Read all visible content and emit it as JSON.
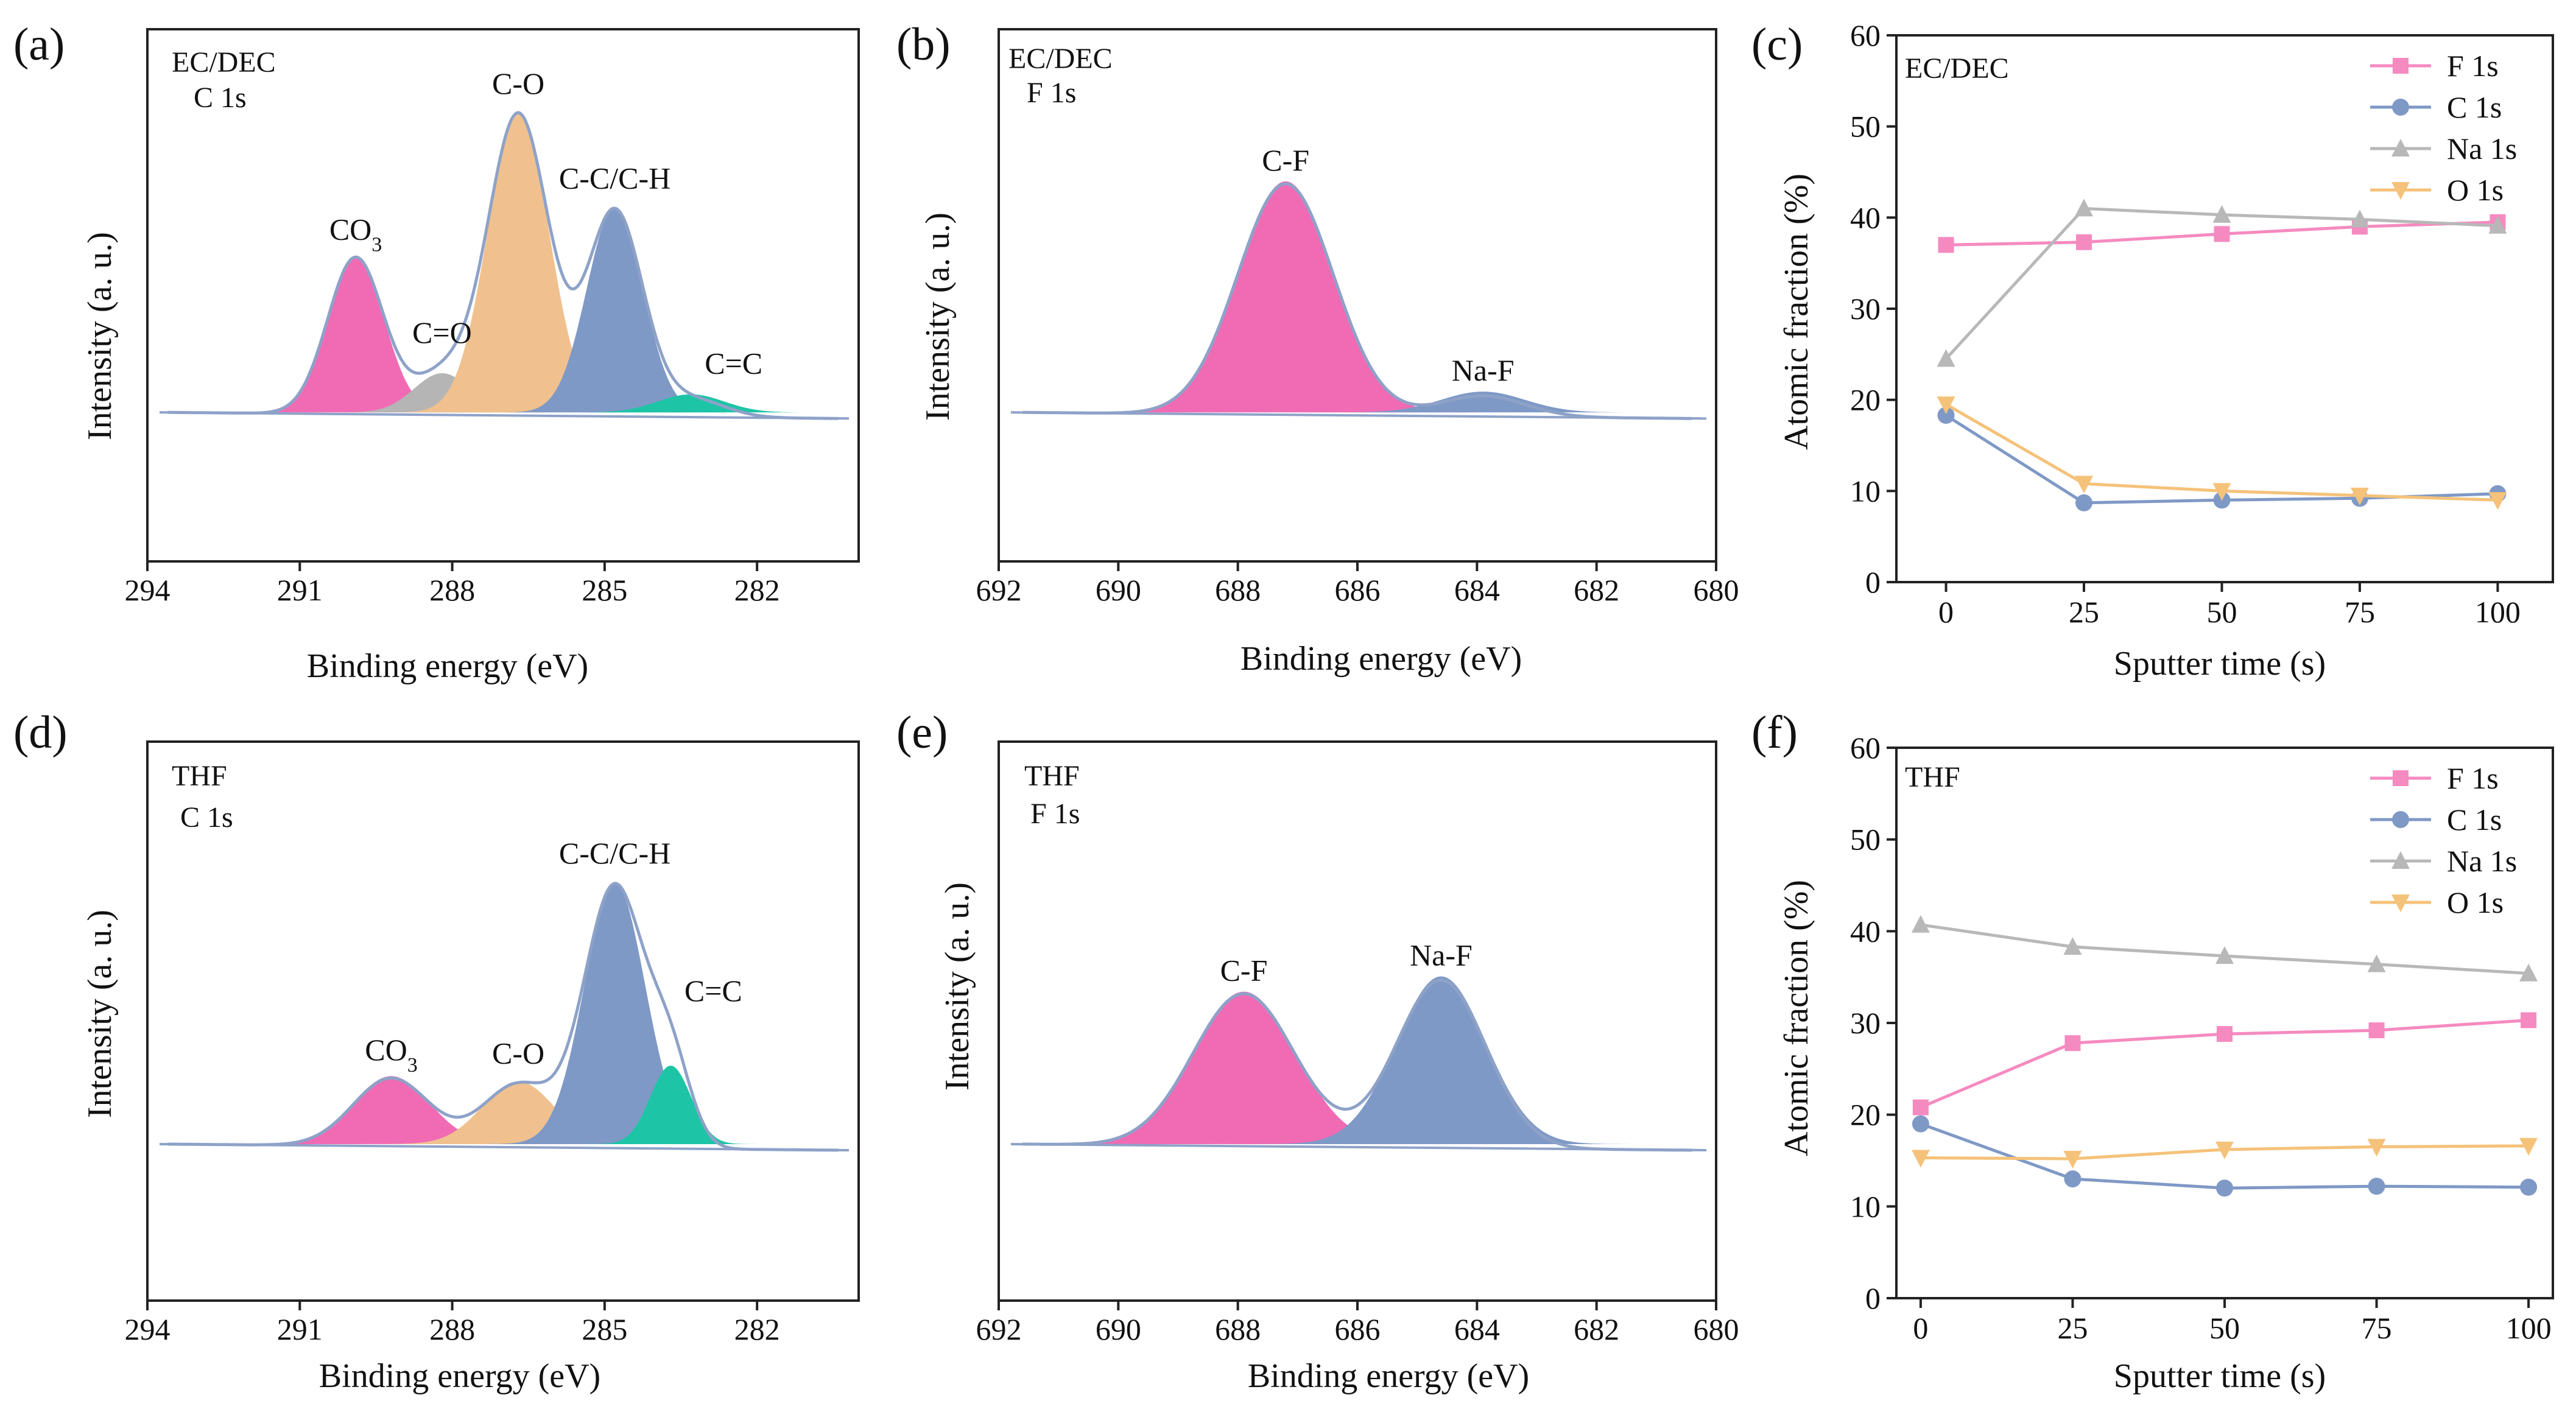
{
  "figure": {
    "panels": {
      "a": {
        "panel_label": "(a)",
        "sample": "EC/DEC",
        "region": "C 1s",
        "xlabel": "Binding energy (eV)",
        "ylabel": "Intensity (a. u.)"
      },
      "b": {
        "panel_label": "(b)",
        "sample": "EC/DEC",
        "region": "F 1s",
        "xlabel": "Binding energy (eV)",
        "ylabel": "Intensity (a. u.)"
      },
      "c": {
        "panel_label": "(c)",
        "sample": "EC/DEC",
        "xlabel": "Sputter time (s)",
        "ylabel": "Atomic fraction (%)"
      },
      "d": {
        "panel_label": "(d)",
        "sample": "THF",
        "region": "C 1s",
        "xlabel": "Binding energy (eV)",
        "ylabel": "Intensity (a. u.)"
      },
      "e": {
        "panel_label": "(e)",
        "sample": "THF",
        "region": "F 1s",
        "xlabel": "Binding energy (eV)",
        "ylabel": "Intensity (a. u.)"
      },
      "f": {
        "panel_label": "(f)",
        "sample": "THF",
        "xlabel": "Sputter time (s)",
        "ylabel": "Atomic fraction (%)"
      }
    }
  },
  "colors": {
    "envelope": "#8ea2c8",
    "CO3": "#f06bb4",
    "C=O": "#b5b5b5",
    "C-O": "#f0c18e",
    "C-C/C-H": "#7f99c6",
    "C=C": "#1ec4a6",
    "C-F": "#f06bb4",
    "Na-F": "#7f99c6",
    "F 1s": "#f58ac0",
    "C 1s": "#7f99c6",
    "Na 1s": "#b8b8b8",
    "O 1s": "#f5c27a"
  },
  "chart_data": [
    {
      "id": "a",
      "type": "xps-peak-fit",
      "title": "EC/DEC C 1s",
      "xlabel": "Binding energy (eV)",
      "ylabel": "Intensity (a. u.)",
      "xlim": [
        294,
        280
      ],
      "xticks": [
        "294",
        "291",
        "288",
        "285",
        "282"
      ],
      "xtick_values": [
        294,
        291,
        288,
        285,
        282
      ],
      "ylim": [
        0,
        1.15
      ],
      "peaks": [
        {
          "name": "CO3",
          "label": "CO",
          "label_sub": "3",
          "center": 289.9,
          "height": 0.52,
          "sigma": 0.55,
          "color_key": "CO3"
        },
        {
          "name": "C=O",
          "label": "C=O",
          "center": 288.2,
          "height": 0.13,
          "sigma": 0.55,
          "color_key": "C=O"
        },
        {
          "name": "C-O",
          "label": "C-O",
          "center": 286.7,
          "height": 1.0,
          "sigma": 0.6,
          "color_key": "C-O"
        },
        {
          "name": "C-C/C-H",
          "label": "C-C/C-H",
          "center": 284.8,
          "height": 0.68,
          "sigma": 0.55,
          "color_key": "C-C/C-H"
        },
        {
          "name": "C=C",
          "label": "C=C",
          "center": 283.3,
          "height": 0.06,
          "sigma": 0.65,
          "color_key": "C=C"
        }
      ]
    },
    {
      "id": "b",
      "type": "xps-peak-fit",
      "title": "EC/DEC F 1s",
      "xlabel": "Binding energy (eV)",
      "ylabel": "Intensity (a. u.)",
      "xlim": [
        692,
        680
      ],
      "xticks": [
        "692",
        "690",
        "688",
        "686",
        "684",
        "682",
        "680"
      ],
      "xtick_values": [
        692,
        690,
        688,
        686,
        684,
        682,
        680
      ],
      "ylim": [
        0,
        1.5
      ],
      "peaks": [
        {
          "name": "C-F",
          "label": "C-F",
          "center": 687.2,
          "height": 1.0,
          "sigma": 0.8,
          "color_key": "C-F"
        },
        {
          "name": "Na-F",
          "label": "Na-F",
          "center": 683.9,
          "height": 0.09,
          "sigma": 0.7,
          "color_key": "Na-F"
        }
      ]
    },
    {
      "id": "c",
      "type": "line",
      "title": "EC/DEC",
      "xlabel": "Sputter time (s)",
      "ylabel": "Atomic fraction (%)",
      "x": [
        0,
        25,
        50,
        75,
        100
      ],
      "xlim": [
        -9,
        110
      ],
      "ylim": [
        0,
        60
      ],
      "xticks": [
        "0",
        "25",
        "50",
        "75",
        "100"
      ],
      "yticks": [
        "0",
        "10",
        "20",
        "30",
        "40",
        "50",
        "60"
      ],
      "legend_position": "top-right",
      "series": [
        {
          "name": "F 1s",
          "marker": "square",
          "color_key": "F 1s",
          "values": [
            37.0,
            37.3,
            38.2,
            39.0,
            39.5
          ]
        },
        {
          "name": "C 1s",
          "marker": "circle",
          "color_key": "C 1s",
          "values": [
            18.3,
            8.7,
            9.0,
            9.2,
            9.7
          ]
        },
        {
          "name": "Na 1s",
          "marker": "triangle-up",
          "color_key": "Na 1s",
          "values": [
            24.5,
            41.0,
            40.3,
            39.8,
            39.1
          ]
        },
        {
          "name": "O 1s",
          "marker": "triangle-down",
          "color_key": "O 1s",
          "values": [
            19.5,
            10.8,
            10.0,
            9.5,
            9.0
          ]
        }
      ]
    },
    {
      "id": "d",
      "type": "xps-peak-fit",
      "title": "THF C 1s",
      "xlabel": "Binding energy (eV)",
      "ylabel": "Intensity (a. u.)",
      "xlim": [
        294,
        280
      ],
      "xticks": [
        "294",
        "291",
        "288",
        "285",
        "282"
      ],
      "xtick_values": [
        294,
        291,
        288,
        285,
        282
      ],
      "ylim": [
        0,
        1.4
      ],
      "peaks": [
        {
          "name": "CO3",
          "label": "CO",
          "label_sub": "3",
          "center": 289.2,
          "height": 0.26,
          "sigma": 0.75,
          "color_key": "CO3"
        },
        {
          "name": "C-O",
          "label": "C-O",
          "center": 286.7,
          "height": 0.24,
          "sigma": 0.7,
          "color_key": "C-O"
        },
        {
          "name": "C-C/C-H",
          "label": "C-C/C-H",
          "center": 284.8,
          "height": 1.0,
          "sigma": 0.6,
          "color_key": "C-C/C-H"
        },
        {
          "name": "C=C",
          "label": "C=C",
          "center": 283.7,
          "height": 0.3,
          "sigma": 0.4,
          "color_key": "C=C"
        }
      ]
    },
    {
      "id": "e",
      "type": "xps-peak-fit",
      "title": "THF F 1s",
      "xlabel": "Binding energy (eV)",
      "ylabel": "Intensity (a. u.)",
      "xlim": [
        692,
        680
      ],
      "xticks": [
        "692",
        "690",
        "688",
        "686",
        "684",
        "682",
        "680"
      ],
      "xtick_values": [
        692,
        690,
        688,
        686,
        684,
        682,
        680
      ],
      "ylim": [
        0,
        2.4
      ],
      "peaks": [
        {
          "name": "C-F",
          "label": "C-F",
          "center": 687.9,
          "height": 1.0,
          "sigma": 0.85,
          "color_key": "C-F"
        },
        {
          "name": "Na-F",
          "label": "Na-F",
          "center": 684.6,
          "height": 1.1,
          "sigma": 0.75,
          "color_key": "Na-F"
        }
      ]
    },
    {
      "id": "f",
      "type": "line",
      "title": "THF",
      "xlabel": "Sputter time (s)",
      "ylabel": "Atomic fraction (%)",
      "x": [
        0,
        25,
        50,
        75,
        100
      ],
      "xlim": [
        -4,
        104
      ],
      "ylim": [
        0,
        60
      ],
      "xticks": [
        "0",
        "25",
        "50",
        "75",
        "100"
      ],
      "yticks": [
        "0",
        "10",
        "20",
        "30",
        "40",
        "50",
        "60"
      ],
      "legend_position": "top-right",
      "series": [
        {
          "name": "F 1s",
          "marker": "square",
          "color_key": "F 1s",
          "values": [
            20.8,
            27.8,
            28.8,
            29.2,
            30.3
          ]
        },
        {
          "name": "C 1s",
          "marker": "circle",
          "color_key": "C 1s",
          "values": [
            19.0,
            13.0,
            12.0,
            12.2,
            12.1
          ]
        },
        {
          "name": "Na 1s",
          "marker": "triangle-up",
          "color_key": "Na 1s",
          "values": [
            40.7,
            38.3,
            37.3,
            36.4,
            35.4
          ]
        },
        {
          "name": "O 1s",
          "marker": "triangle-down",
          "color_key": "O 1s",
          "values": [
            15.3,
            15.2,
            16.2,
            16.5,
            16.6
          ]
        }
      ]
    }
  ]
}
